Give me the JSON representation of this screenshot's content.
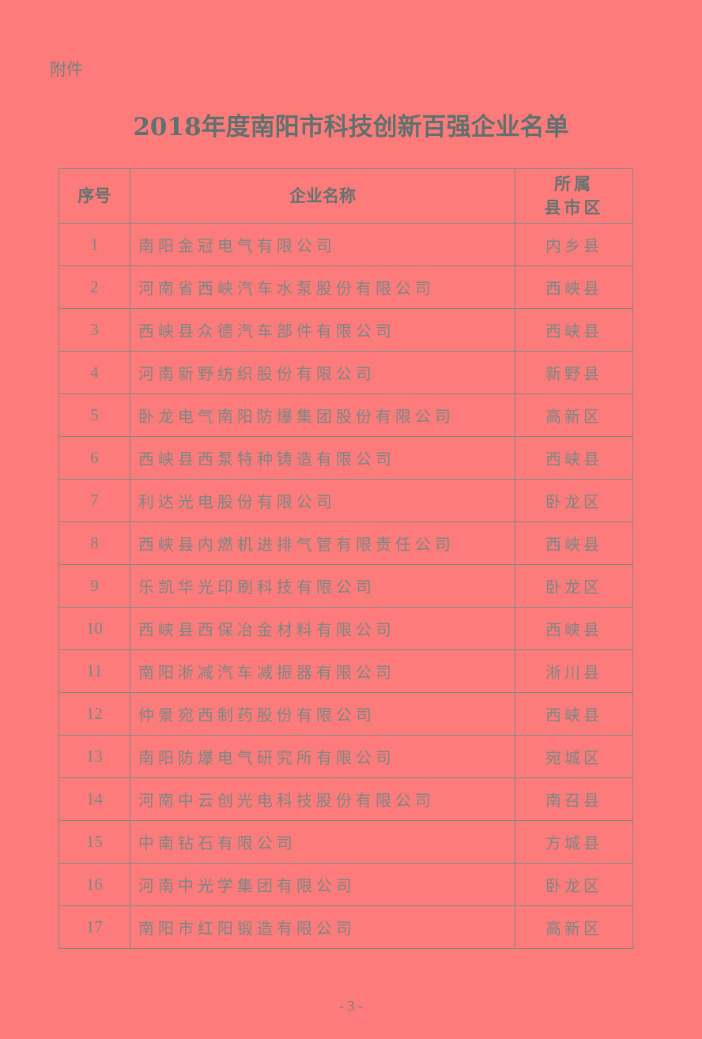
{
  "attachment_label": "附件",
  "title": "2018年度南阳市科技创新百强企业名单",
  "table": {
    "headers": {
      "no": "序号",
      "name": "企业名称",
      "region_line1": "所属",
      "region_line2": "县市区"
    },
    "rows": [
      {
        "no": "1",
        "name": "南阳金冠电气有限公司",
        "region": "内乡县"
      },
      {
        "no": "2",
        "name": "河南省西峡汽车水泵股份有限公司",
        "region": "西峡县"
      },
      {
        "no": "3",
        "name": "西峡县众德汽车部件有限公司",
        "region": "西峡县"
      },
      {
        "no": "4",
        "name": "河南新野纺织股份有限公司",
        "region": "新野县"
      },
      {
        "no": "5",
        "name": "卧龙电气南阳防爆集团股份有限公司",
        "region": "高新区"
      },
      {
        "no": "6",
        "name": "西峡县西泵特种铸造有限公司",
        "region": "西峡县"
      },
      {
        "no": "7",
        "name": "利达光电股份有限公司",
        "region": "卧龙区"
      },
      {
        "no": "8",
        "name": "西峡县内燃机进排气管有限责任公司",
        "region": "西峡县"
      },
      {
        "no": "9",
        "name": "乐凯华光印刷科技有限公司",
        "region": "卧龙区"
      },
      {
        "no": "10",
        "name": "西峡县西保冶金材料有限公司",
        "region": "西峡县"
      },
      {
        "no": "11",
        "name": "南阳淅减汽车减振器有限公司",
        "region": "淅川县"
      },
      {
        "no": "12",
        "name": "仲景宛西制药股份有限公司",
        "region": "西峡县"
      },
      {
        "no": "13",
        "name": "南阳防爆电气研究所有限公司",
        "region": "宛城区"
      },
      {
        "no": "14",
        "name": "河南中云创光电科技股份有限公司",
        "region": "南召县"
      },
      {
        "no": "15",
        "name": "中南钻石有限公司",
        "region": "方城县"
      },
      {
        "no": "16",
        "name": "河南中光学集团有限公司",
        "region": "卧龙区"
      },
      {
        "no": "17",
        "name": "南阳市红阳锻造有限公司",
        "region": "高新区"
      }
    ]
  },
  "page_number": "- 3 -",
  "colors": {
    "background": "#fd7c7b",
    "text": "#6f7f7c"
  }
}
